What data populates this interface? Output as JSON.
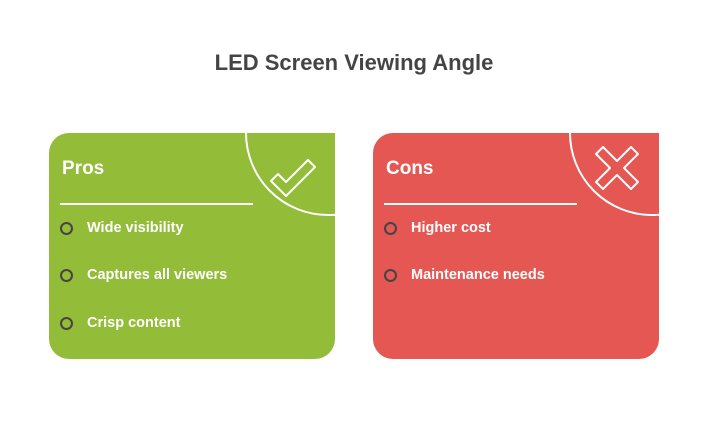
{
  "title": "LED Screen Viewing Angle",
  "colors": {
    "pros": "#93BC39",
    "cons": "#E55753"
  },
  "pros": {
    "heading": "Pros",
    "icon": "check-icon",
    "items": [
      "Wide visibility",
      "Captures all viewers",
      "Crisp content"
    ]
  },
  "cons": {
    "heading": "Cons",
    "icon": "x-icon",
    "items": [
      "Higher cost",
      "Maintenance needs"
    ]
  }
}
